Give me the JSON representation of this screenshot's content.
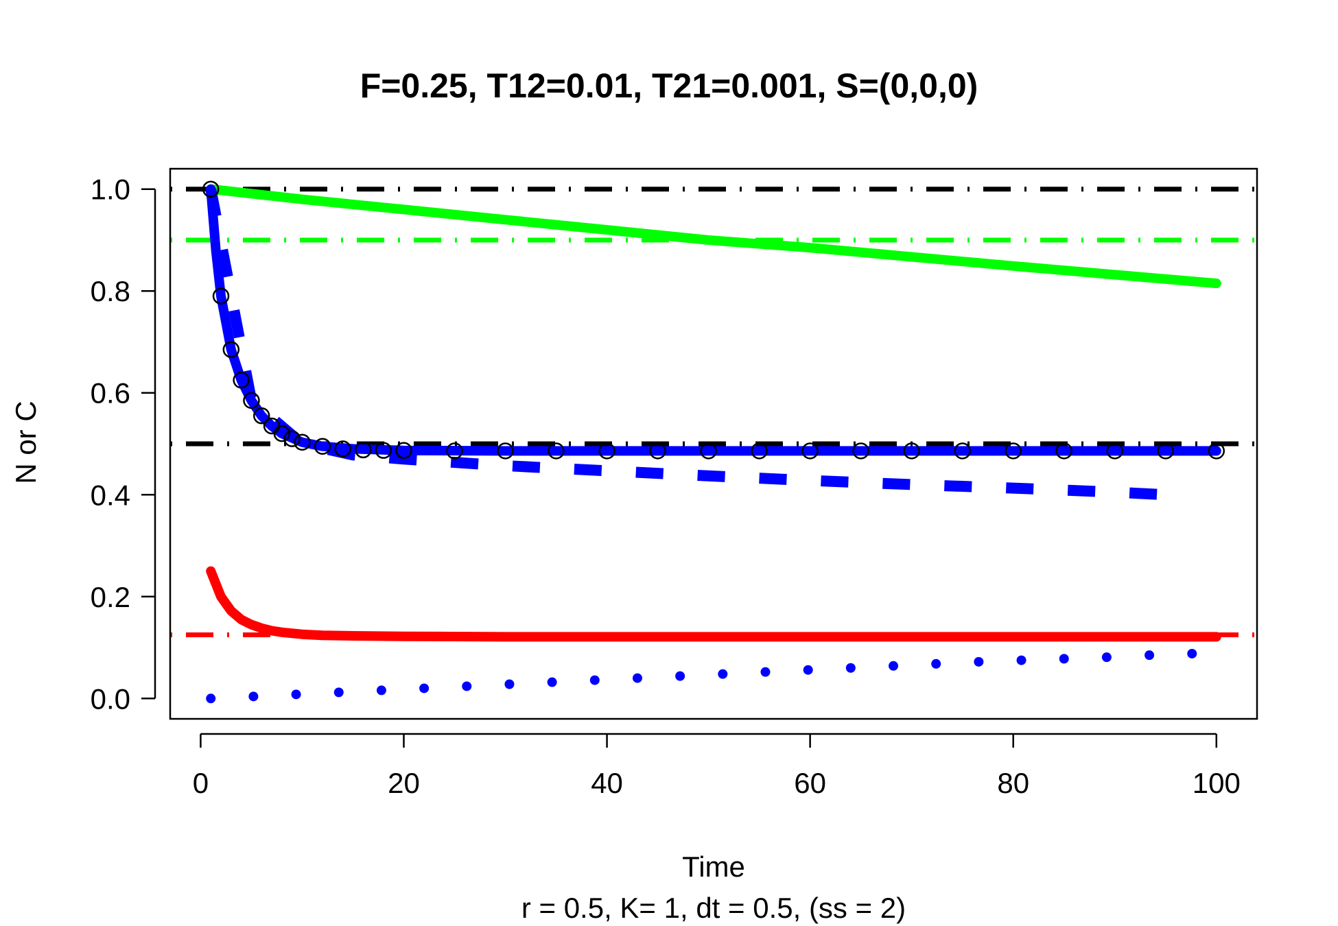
{
  "chart_data": {
    "type": "line",
    "title": "F=0.25, T12=0.01, T21=0.001, S=(0,0,0)",
    "xlabel": "Time",
    "ylabel": "N or C",
    "subtitle": "r = 0.5, K= 1, dt = 0.5, (ss = 2)",
    "xlim": [
      -3,
      104
    ],
    "ylim": [
      -0.04,
      1.04
    ],
    "xticks": [
      0,
      20,
      40,
      60,
      80,
      100
    ],
    "xtick_labels": [
      "0",
      "20",
      "40",
      "60",
      "80",
      "100"
    ],
    "yticks": [
      0.0,
      0.2,
      0.4,
      0.6,
      0.8,
      1.0
    ],
    "ytick_labels": [
      "0.0",
      "0.2",
      "0.4",
      "0.6",
      "0.8",
      "1.0"
    ],
    "grid": false,
    "legend": "none",
    "series": [
      {
        "color": "#00ff00",
        "style": "solid",
        "x": [
          1,
          10,
          20,
          30,
          40,
          50,
          60,
          70,
          80,
          90,
          100
        ],
        "y": [
          1.0,
          0.98,
          0.96,
          0.94,
          0.92,
          0.9,
          0.885,
          0.867,
          0.849,
          0.832,
          0.815
        ]
      },
      {
        "color": "#0000ff",
        "style": "solid",
        "x": [
          1,
          1.5,
          2,
          3,
          4,
          5,
          6,
          7,
          8,
          10,
          12,
          15,
          20,
          30,
          50,
          100
        ],
        "y": [
          1.0,
          0.88,
          0.79,
          0.685,
          0.625,
          0.585,
          0.555,
          0.535,
          0.52,
          0.503,
          0.495,
          0.49,
          0.487,
          0.486,
          0.486,
          0.486
        ]
      },
      {
        "color": "#0000ff",
        "style": "dashed",
        "x": [
          1,
          5,
          10,
          15,
          20,
          30,
          40,
          50,
          60,
          70,
          80,
          90,
          95
        ],
        "y": [
          1.0,
          0.585,
          0.5,
          0.478,
          0.47,
          0.457,
          0.447,
          0.437,
          0.428,
          0.42,
          0.413,
          0.405,
          0.4
        ]
      },
      {
        "color": "#ff0000",
        "style": "solid",
        "x": [
          1,
          2,
          3,
          4,
          5,
          6,
          7,
          8,
          10,
          12,
          15,
          20,
          30,
          50,
          100
        ],
        "y": [
          0.25,
          0.2,
          0.172,
          0.155,
          0.145,
          0.138,
          0.133,
          0.13,
          0.126,
          0.124,
          0.123,
          0.122,
          0.121,
          0.121,
          0.121
        ]
      },
      {
        "color": "#0000ff",
        "style": "dotted",
        "x": [
          1,
          5.2,
          9.4,
          13.6,
          17.8,
          22,
          26.2,
          30.4,
          34.6,
          38.8,
          43,
          47.2,
          51.4,
          55.6,
          59.8,
          64,
          68.2,
          72.4,
          76.6,
          80.8,
          85,
          89.2,
          93.4,
          97.6
        ],
        "y": [
          0.0,
          0.004,
          0.008,
          0.012,
          0.016,
          0.02,
          0.024,
          0.028,
          0.032,
          0.036,
          0.04,
          0.044,
          0.048,
          0.052,
          0.056,
          0.06,
          0.064,
          0.068,
          0.072,
          0.075,
          0.078,
          0.081,
          0.085,
          0.088
        ]
      },
      {
        "color": "#000000",
        "style": "circles",
        "x": [
          1,
          2,
          3,
          4,
          5,
          6,
          7,
          8,
          9,
          10,
          12,
          14,
          16,
          18,
          20,
          25,
          30,
          35,
          40,
          45,
          50,
          55,
          60,
          65,
          70,
          75,
          80,
          85,
          90,
          95,
          100
        ],
        "y": [
          1.0,
          0.79,
          0.685,
          0.625,
          0.585,
          0.555,
          0.535,
          0.52,
          0.51,
          0.503,
          0.495,
          0.49,
          0.488,
          0.487,
          0.487,
          0.486,
          0.486,
          0.486,
          0.486,
          0.486,
          0.486,
          0.486,
          0.486,
          0.486,
          0.486,
          0.486,
          0.486,
          0.486,
          0.486,
          0.486,
          0.486
        ]
      }
    ],
    "hlines": [
      {
        "y": 1.0,
        "color": "#000000"
      },
      {
        "y": 0.9,
        "color": "#00ff00"
      },
      {
        "y": 0.5,
        "color": "#000000"
      },
      {
        "y": 0.125,
        "color": "#ff0000"
      }
    ]
  }
}
